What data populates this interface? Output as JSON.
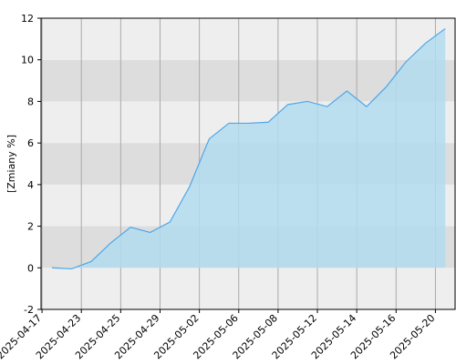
{
  "chart_data": {
    "type": "area",
    "y_label": "[Zmiany %]",
    "x": [
      0,
      1,
      2,
      3,
      4,
      5,
      6,
      7,
      8,
      9,
      10,
      11,
      12,
      13,
      14,
      15,
      16,
      17,
      18,
      19,
      20
    ],
    "series": [
      {
        "color": "#4da6e8",
        "fill": "#b3dcee",
        "values": [
          0,
          -0.05,
          0.3,
          1.2,
          1.95,
          1.7,
          2.2,
          3.9,
          6.2,
          6.95,
          6.95,
          7.0,
          7.85,
          8.0,
          7.75,
          8.5,
          7.75,
          8.7,
          9.9,
          10.8,
          11.5
        ]
      }
    ],
    "xlim": [
      -0.55,
      20.5
    ],
    "xticks": [
      {
        "value": -0.5,
        "label": "2025-04-17"
      },
      {
        "value": 1.5,
        "label": "2025-04-23"
      },
      {
        "value": 3.5,
        "label": "2025-04-25"
      },
      {
        "value": 5.5,
        "label": "2025-04-29"
      },
      {
        "value": 7.5,
        "label": "2025-05-02"
      },
      {
        "value": 9.5,
        "label": "2025-05-06"
      },
      {
        "value": 11.5,
        "label": "2025-05-08"
      },
      {
        "value": 13.5,
        "label": "2025-05-12"
      },
      {
        "value": 15.5,
        "label": "2025-05-14"
      },
      {
        "value": 17.5,
        "label": "2025-05-16"
      },
      {
        "value": 19.5,
        "label": "2025-05-20"
      }
    ],
    "ylim": [
      -2,
      12
    ],
    "yticks": [
      -2,
      0,
      2,
      4,
      6,
      8,
      10,
      12
    ],
    "band_colors": [
      "#eeeeee",
      "#dddddd"
    ],
    "grid": true
  }
}
